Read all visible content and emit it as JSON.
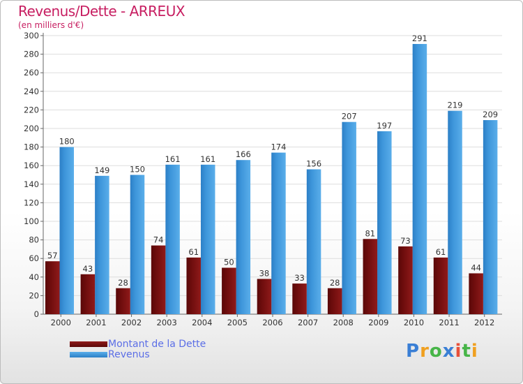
{
  "title": "Revenus/Dette - ARREUX",
  "subtitle": "(en milliers d'€)",
  "colors": {
    "title": "#c71e61",
    "dette": "#7a1010",
    "revenus": "#3d95da",
    "legend_text": "#5b6ee6",
    "grid": "#dddddd",
    "value_label": "#333333"
  },
  "legend": [
    {
      "label": "Montant de la Dette"
    },
    {
      "label": "Revenus"
    }
  ],
  "logo": {
    "text": "Proxiti",
    "letters": [
      {
        "char": "P",
        "color": "#3a7fd5"
      },
      {
        "char": "r",
        "color": "#f0a020"
      },
      {
        "char": "o",
        "color": "#47b548"
      },
      {
        "char": "x",
        "color": "#3a7fd5"
      },
      {
        "char": "i",
        "color": "#e8503a"
      },
      {
        "char": "t",
        "color": "#47b548"
      },
      {
        "char": "i",
        "color": "#f0a020"
      }
    ]
  },
  "chart_data": {
    "type": "bar",
    "title": "Revenus/Dette - ARREUX",
    "subtitle": "(en milliers d'€)",
    "categories": [
      "2000",
      "2001",
      "2002",
      "2003",
      "2004",
      "2005",
      "2006",
      "2007",
      "2008",
      "2009",
      "2010",
      "2011",
      "2012"
    ],
    "series": [
      {
        "name": "Montant de la Dette",
        "values": [
          57,
          43,
          28,
          74,
          61,
          50,
          38,
          33,
          28,
          81,
          73,
          61,
          44
        ]
      },
      {
        "name": "Revenus",
        "values": [
          180,
          149,
          150,
          161,
          161,
          166,
          174,
          156,
          207,
          197,
          291,
          219,
          209
        ]
      }
    ],
    "ylim": [
      0,
      300
    ],
    "yticks": [
      0,
      20,
      40,
      60,
      80,
      100,
      120,
      140,
      160,
      180,
      200,
      220,
      240,
      260,
      280,
      300
    ],
    "grid": true,
    "legend_position": "bottom-left"
  }
}
